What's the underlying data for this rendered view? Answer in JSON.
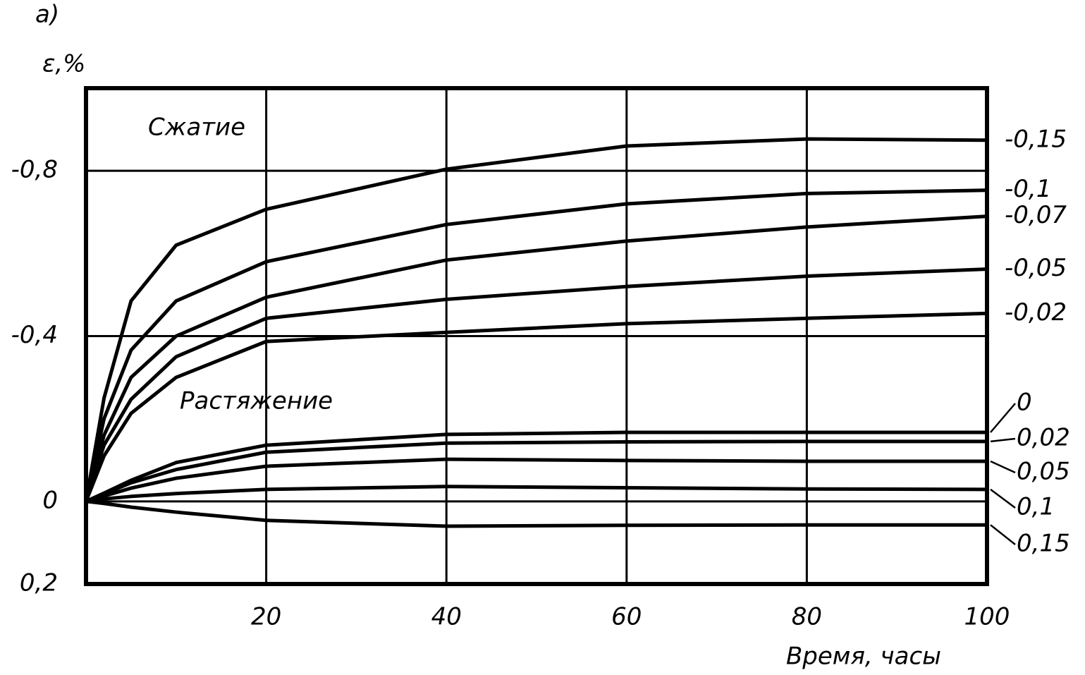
{
  "chart_data": {
    "type": "line",
    "panel_label": "а)",
    "y_label": "ε,%",
    "x_label": "Время, часы",
    "annotations": [
      "Сжатие",
      "Растяжение"
    ],
    "x": [
      0,
      2,
      5,
      10,
      20,
      40,
      60,
      80,
      100
    ],
    "xlim": [
      0,
      100
    ],
    "xticks": [
      20,
      40,
      60,
      80,
      100
    ],
    "ylim": [
      -1.0,
      0.2
    ],
    "y_inverted": true,
    "yticks": [
      {
        "value": -0.8,
        "label": "-0,8"
      },
      {
        "value": -0.4,
        "label": "-0,4"
      },
      0,
      {
        "value": 0.2,
        "label": "0,2"
      }
    ],
    "grid": true,
    "series": [
      {
        "name": "-0,15",
        "color": "#000000",
        "values": [
          0,
          -0.25,
          -0.485,
          -0.62,
          -0.707,
          -0.804,
          -0.86,
          -0.877,
          -0.874
        ]
      },
      {
        "name": "-0,1",
        "color": "#000000",
        "values": [
          0,
          -0.2,
          -0.366,
          -0.485,
          -0.58,
          -0.67,
          -0.72,
          -0.745,
          -0.753
        ]
      },
      {
        "name": "-0,07",
        "color": "#000000",
        "values": [
          0,
          -0.16,
          -0.3,
          -0.4,
          -0.494,
          -0.584,
          -0.63,
          -0.664,
          -0.69
        ]
      },
      {
        "name": "-0,05",
        "color": "#000000",
        "values": [
          0,
          -0.136,
          -0.247,
          -0.35,
          -0.443,
          -0.489,
          -0.52,
          -0.545,
          -0.562
        ]
      },
      {
        "name": "-0,02",
        "color": "#000000",
        "values": [
          0,
          -0.11,
          -0.213,
          -0.3,
          -0.387,
          -0.409,
          -0.43,
          -0.443,
          -0.455
        ]
      },
      {
        "name": "0",
        "color": "#000000",
        "values": [
          0,
          -0.02,
          -0.051,
          -0.094,
          -0.136,
          -0.162,
          -0.167,
          -0.167,
          -0.167
        ]
      },
      {
        "name": "0,02",
        "color": "#000000",
        "values": [
          0,
          -0.018,
          -0.045,
          -0.077,
          -0.119,
          -0.141,
          -0.144,
          -0.145,
          -0.145
        ]
      },
      {
        "name": "0,05",
        "color": "#000000",
        "values": [
          0,
          -0.013,
          -0.032,
          -0.056,
          -0.085,
          -0.102,
          -0.099,
          -0.097,
          -0.097
        ]
      },
      {
        "name": "0,1",
        "color": "#000000",
        "values": [
          0,
          -0.006,
          -0.012,
          -0.019,
          -0.029,
          -0.036,
          -0.033,
          -0.03,
          -0.029
        ]
      },
      {
        "name": "0,15",
        "color": "#000000",
        "values": [
          0,
          0.005,
          0.014,
          0.026,
          0.046,
          0.06,
          0.058,
          0.057,
          0.057
        ]
      }
    ]
  }
}
